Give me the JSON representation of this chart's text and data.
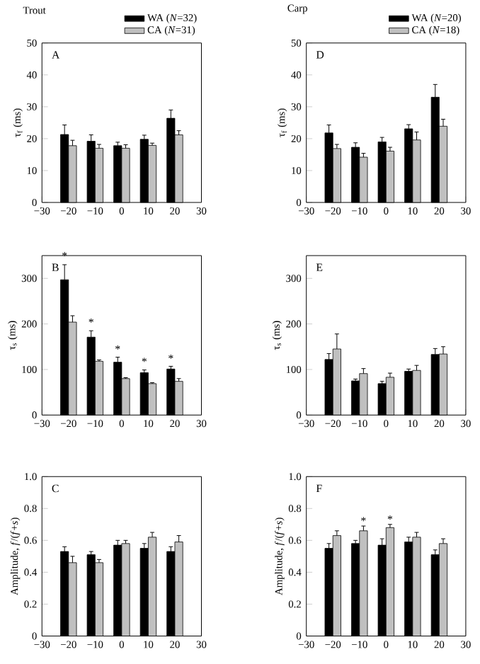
{
  "chart_data": [
    {
      "type": "bar",
      "title": "Trout",
      "ylabel": "τ$_{f}$ (ms)",
      "x": [
        -20,
        -10,
        0,
        10,
        20
      ],
      "xlim": [
        -30,
        30
      ],
      "xticks": [
        {
          "value": -30,
          "label": "−30"
        },
        {
          "value": -20,
          "label": "−20"
        },
        {
          "value": -10,
          "label": "−10"
        },
        0,
        10,
        20,
        30
      ],
      "ylim": [
        0,
        50
      ],
      "yticks": [
        0,
        10,
        20,
        30,
        40,
        50
      ],
      "legend": "top right",
      "grid": false,
      "annotations": [
        "A"
      ],
      "series": [
        {
          "name": "WA (*N*=32)",
          "color": "#000000",
          "values": [
            21.3,
            19.2,
            17.8,
            19.8,
            26.4
          ],
          "errors": [
            [
              21.3,
              24.3
            ],
            [
              19.2,
              21.2
            ],
            [
              17.8,
              18.9
            ],
            [
              19.8,
              21.1
            ],
            [
              26.4,
              29.0
            ]
          ]
        },
        {
          "name": "CA (*N*=31)",
          "color": "#c0c0c0",
          "values": [
            17.8,
            17.0,
            17.0,
            17.9,
            21.2
          ],
          "errors": [
            [
              17.8,
              19.5
            ],
            [
              17.0,
              18.2
            ],
            [
              17.0,
              18.1
            ],
            [
              17.9,
              18.6
            ],
            [
              21.2,
              22.5
            ]
          ]
        }
      ]
    },
    {
      "type": "bar",
      "ylabel": "τ$_{s}$ (ms)",
      "x": [
        -20,
        -10,
        0,
        10,
        20
      ],
      "xlim": [
        -30,
        30
      ],
      "xticks": [
        {
          "value": -30,
          "label": "−30"
        },
        {
          "value": -20,
          "label": "−20"
        },
        {
          "value": -10,
          "label": "−10"
        },
        0,
        10,
        20,
        30
      ],
      "ylim": [
        0,
        350
      ],
      "yticks": [
        0,
        100,
        200,
        300
      ],
      "grid": false,
      "annotations": [
        "B",
        {
          "text": "*",
          "x": -21.5,
          "y": 338
        },
        {
          "text": "*",
          "x": -11.5,
          "y": 192
        },
        {
          "text": "*",
          "x": -1.5,
          "y": 133
        },
        {
          "text": "*",
          "x": 8.5,
          "y": 106
        },
        {
          "text": "*",
          "x": 18.5,
          "y": 113
        }
      ],
      "series": [
        {
          "color": "#000000",
          "values": [
            297,
            171,
            116,
            93,
            101
          ],
          "errors": [
            [
              297,
              330
            ],
            [
              171,
              185
            ],
            [
              116,
              127
            ],
            [
              93,
              99
            ],
            [
              101,
              107
            ]
          ]
        },
        {
          "color": "#c0c0c0",
          "values": [
            204,
            118,
            80,
            69,
            74
          ],
          "errors": [
            [
              204,
              218
            ],
            [
              118,
              121
            ],
            [
              80,
              82
            ],
            [
              69,
              71
            ],
            [
              74,
              80
            ]
          ]
        }
      ]
    },
    {
      "type": "bar",
      "ylabel": "Amplitude, *f*/(*f*+*s*)",
      "x": [
        -20,
        -10,
        0,
        10,
        20
      ],
      "xlim": [
        -30,
        30
      ],
      "xticks": [
        {
          "value": -30,
          "label": "−30"
        },
        {
          "value": -20,
          "label": "−20"
        },
        {
          "value": -10,
          "label": "−10"
        },
        0,
        10,
        20,
        30
      ],
      "ylim": [
        0,
        1.0
      ],
      "yticks": [
        0,
        0.2,
        0.4,
        0.6,
        0.8,
        {
          "value": 1.0,
          "label": "1.0"
        }
      ],
      "grid": false,
      "annotations": [
        "C"
      ],
      "series": [
        {
          "color": "#000000",
          "values": [
            0.53,
            0.51,
            0.57,
            0.55,
            0.53
          ],
          "errors": [
            [
              0.53,
              0.56
            ],
            [
              0.51,
              0.53
            ],
            [
              0.57,
              0.6
            ],
            [
              0.55,
              0.58
            ],
            [
              0.53,
              0.56
            ]
          ]
        },
        {
          "color": "#c0c0c0",
          "values": [
            0.46,
            0.46,
            0.58,
            0.62,
            0.59
          ],
          "errors": [
            [
              0.46,
              0.5
            ],
            [
              0.46,
              0.48
            ],
            [
              0.58,
              0.6
            ],
            [
              0.62,
              0.65
            ],
            [
              0.59,
              0.63
            ]
          ]
        }
      ]
    },
    {
      "type": "bar",
      "title": "Carp",
      "ylabel": "τ$_{f}$ (ms)",
      "x": [
        -20,
        -10,
        0,
        10,
        20
      ],
      "xlim": [
        -30,
        30
      ],
      "xticks": [
        {
          "value": -30,
          "label": "−30"
        },
        {
          "value": -20,
          "label": "−20"
        },
        {
          "value": -10,
          "label": "−10"
        },
        0,
        10,
        20,
        30
      ],
      "ylim": [
        0,
        50
      ],
      "yticks": [
        0,
        10,
        20,
        30,
        40,
        50
      ],
      "legend": "top right",
      "grid": false,
      "annotations": [
        "D"
      ],
      "series": [
        {
          "name": "WA (*N*=20)",
          "color": "#000000",
          "values": [
            21.8,
            17.3,
            19.0,
            23.1,
            33.0
          ],
          "errors": [
            [
              21.8,
              24.3
            ],
            [
              17.3,
              18.7
            ],
            [
              19.0,
              20.4
            ],
            [
              23.1,
              24.4
            ],
            [
              33.0,
              37.0
            ]
          ]
        },
        {
          "name": "CA (*N*=18)",
          "color": "#c0c0c0",
          "values": [
            16.9,
            14.2,
            16.1,
            19.6,
            23.9
          ],
          "errors": [
            [
              16.9,
              18.2
            ],
            [
              14.2,
              15.4
            ],
            [
              16.1,
              17.3
            ],
            [
              19.6,
              22.1
            ],
            [
              23.9,
              26.1
            ]
          ]
        }
      ]
    },
    {
      "type": "bar",
      "ylabel": "τ$_{s}$ (ms)",
      "x": [
        -20,
        -10,
        0,
        10,
        20
      ],
      "xlim": [
        -30,
        30
      ],
      "xticks": [
        {
          "value": -30,
          "label": "−30"
        },
        {
          "value": -20,
          "label": "−20"
        },
        {
          "value": -10,
          "label": "−10"
        },
        0,
        10,
        20,
        30
      ],
      "ylim": [
        0,
        350
      ],
      "yticks": [
        0,
        100,
        200,
        300
      ],
      "grid": false,
      "annotations": [
        "E"
      ],
      "series": [
        {
          "color": "#000000",
          "values": [
            122,
            75,
            69,
            96,
            133
          ],
          "errors": [
            [
              122,
              135
            ],
            [
              75,
              79
            ],
            [
              69,
              74
            ],
            [
              96,
              101
            ],
            [
              133,
              146
            ]
          ]
        },
        {
          "color": "#c0c0c0",
          "values": [
            145,
            91,
            83,
            98,
            134
          ],
          "errors": [
            [
              145,
              178
            ],
            [
              91,
              102
            ],
            [
              83,
              92
            ],
            [
              98,
              109
            ],
            [
              134,
              150
            ]
          ]
        }
      ]
    },
    {
      "type": "bar",
      "ylabel": "Amplitude, *f*/(*f*+*s*)",
      "x": [
        -20,
        -10,
        0,
        10,
        20
      ],
      "xlim": [
        -30,
        30
      ],
      "xticks": [
        {
          "value": -30,
          "label": "−30"
        },
        {
          "value": -20,
          "label": "−20"
        },
        {
          "value": -10,
          "label": "−10"
        },
        0,
        10,
        20,
        30
      ],
      "ylim": [
        0,
        1.0
      ],
      "yticks": [
        0,
        0.2,
        0.4,
        0.6,
        0.8,
        {
          "value": 1.0,
          "label": "1.0"
        }
      ],
      "grid": false,
      "annotations": [
        "F",
        {
          "text": "*",
          "x": -8.5,
          "y": 0.69
        },
        {
          "text": "*",
          "x": 1.5,
          "y": 0.7
        }
      ],
      "series": [
        {
          "color": "#000000",
          "values": [
            0.55,
            0.58,
            0.57,
            0.59,
            0.51
          ],
          "errors": [
            [
              0.55,
              0.58
            ],
            [
              0.58,
              0.6
            ],
            [
              0.57,
              0.61
            ],
            [
              0.59,
              0.62
            ],
            [
              0.51,
              0.54
            ]
          ]
        },
        {
          "color": "#c0c0c0",
          "values": [
            0.63,
            0.66,
            0.68,
            0.62,
            0.58
          ],
          "errors": [
            [
              0.63,
              0.66
            ],
            [
              0.66,
              0.69
            ],
            [
              0.68,
              0.7
            ],
            [
              0.62,
              0.65
            ],
            [
              0.58,
              0.61
            ]
          ]
        }
      ]
    }
  ]
}
